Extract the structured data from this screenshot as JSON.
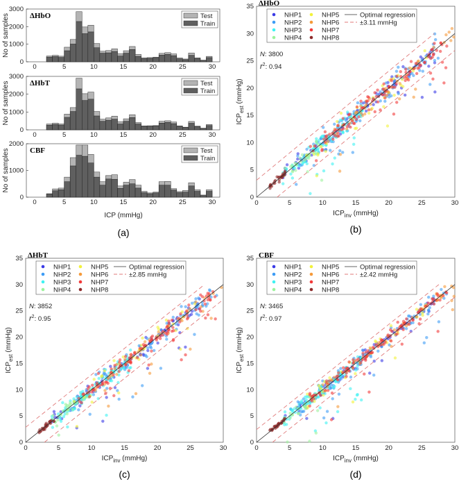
{
  "chart_data": [
    {
      "type": "bar",
      "panel": "(a)",
      "stacked": true,
      "xlabel": "ICP (mmHg)",
      "ylabel": "No of samples",
      "xlim": [
        -2,
        31
      ],
      "xticks": [
        0,
        5,
        10,
        15,
        20,
        25,
        30
      ],
      "legend": [
        "Test",
        "Train"
      ],
      "colors": {
        "Test": "#b4b4b4",
        "Train": "#5f5f5f"
      },
      "bin_starts": [
        2,
        3,
        4,
        5,
        6,
        7,
        8,
        9,
        10,
        11,
        12,
        13,
        14,
        15,
        16,
        17,
        18,
        19,
        20,
        21,
        22,
        23,
        24,
        25,
        26,
        27,
        28,
        29
      ],
      "subplots": [
        {
          "title": "ΔHbO",
          "ylim": [
            0,
            3000
          ],
          "yticks": [
            0,
            1000,
            2000,
            3000
          ],
          "total": [
            330,
            370,
            320,
            830,
            1270,
            2850,
            1980,
            2080,
            1040,
            600,
            640,
            740,
            460,
            630,
            870,
            420,
            230,
            240,
            260,
            480,
            520,
            450,
            220,
            160,
            500,
            230,
            100,
            310
          ],
          "train": [
            270,
            300,
            250,
            630,
            1010,
            2290,
            1600,
            1700,
            800,
            490,
            510,
            590,
            330,
            490,
            700,
            310,
            180,
            200,
            240,
            380,
            420,
            350,
            170,
            120,
            370,
            190,
            60,
            240
          ]
        },
        {
          "title": "ΔHbT",
          "ylim": [
            0,
            3000
          ],
          "yticks": [
            0,
            1000,
            2000,
            3000
          ],
          "total": [
            330,
            380,
            330,
            880,
            1250,
            2900,
            2030,
            2120,
            1030,
            600,
            670,
            770,
            460,
            620,
            850,
            410,
            220,
            230,
            240,
            480,
            510,
            440,
            220,
            150,
            470,
            210,
            100,
            300
          ],
          "train": [
            260,
            300,
            270,
            700,
            1030,
            2300,
            1650,
            1720,
            780,
            480,
            540,
            600,
            330,
            480,
            690,
            330,
            200,
            200,
            220,
            380,
            420,
            350,
            200,
            130,
            370,
            180,
            60,
            240
          ]
        },
        {
          "title": "CBF",
          "ylim": [
            0,
            2000
          ],
          "yticks": [
            0,
            1000,
            2000
          ],
          "total": [
            130,
            310,
            340,
            750,
            1480,
            1950,
            1950,
            1600,
            940,
            580,
            810,
            840,
            420,
            560,
            660,
            450,
            220,
            160,
            190,
            580,
            590,
            320,
            210,
            250,
            540,
            280,
            80,
            280
          ],
          "train": [
            120,
            240,
            280,
            580,
            1170,
            1570,
            1530,
            1280,
            750,
            450,
            680,
            670,
            330,
            450,
            500,
            340,
            170,
            130,
            160,
            450,
            450,
            270,
            170,
            190,
            420,
            220,
            60,
            220
          ]
        }
      ]
    },
    {
      "type": "scatter",
      "panel": "(b)",
      "title": "ΔHbO",
      "N": "3800",
      "r2": "0.94",
      "band": "±3.11 mmHg",
      "band_value": 3.11,
      "xlim": [
        0,
        30
      ],
      "ylim": [
        0,
        35
      ]
    },
    {
      "type": "scatter",
      "panel": "(c)",
      "title": "ΔHbT",
      "N": "3852",
      "r2": "0.95",
      "band": "±2.85 mmHg",
      "band_value": 2.85,
      "xlim": [
        0,
        30
      ],
      "ylim": [
        0,
        35
      ]
    },
    {
      "type": "scatter",
      "panel": "(d)",
      "title": "CBF",
      "N": "3465",
      "r2": "0.97",
      "band": "±2.42 mmHg",
      "band_value": 2.42,
      "xlim": [
        0,
        30
      ],
      "ylim": [
        0,
        35
      ]
    }
  ],
  "scatter_common": {
    "xlabel": "ICP",
    "xlabel_sub": "inv",
    "xlabel_unit": " (mmHg)",
    "ylabel": "ICP",
    "ylabel_sub": "est",
    "ylabel_unit": " (mmHg)",
    "xticks": [
      0,
      5,
      10,
      15,
      20,
      25,
      30
    ],
    "yticks": [
      0,
      5,
      10,
      15,
      20,
      25,
      30,
      35
    ],
    "regression_label": "Optimal regression",
    "N_label": "N",
    "r2_label": "r",
    "series": [
      {
        "name": "NHP1",
        "color": "#3b3be6"
      },
      {
        "name": "NHP2",
        "color": "#3d9cf5"
      },
      {
        "name": "NHP3",
        "color": "#3ef2f2"
      },
      {
        "name": "NHP4",
        "color": "#9cf29c"
      },
      {
        "name": "NHP5",
        "color": "#f2f23a"
      },
      {
        "name": "NHP6",
        "color": "#f59a3a"
      },
      {
        "name": "NHP7",
        "color": "#f23a3a"
      },
      {
        "name": "NHP8",
        "color": "#8e2a2a"
      }
    ],
    "regression_color": "#333333",
    "band_color": "#e07a7a"
  }
}
